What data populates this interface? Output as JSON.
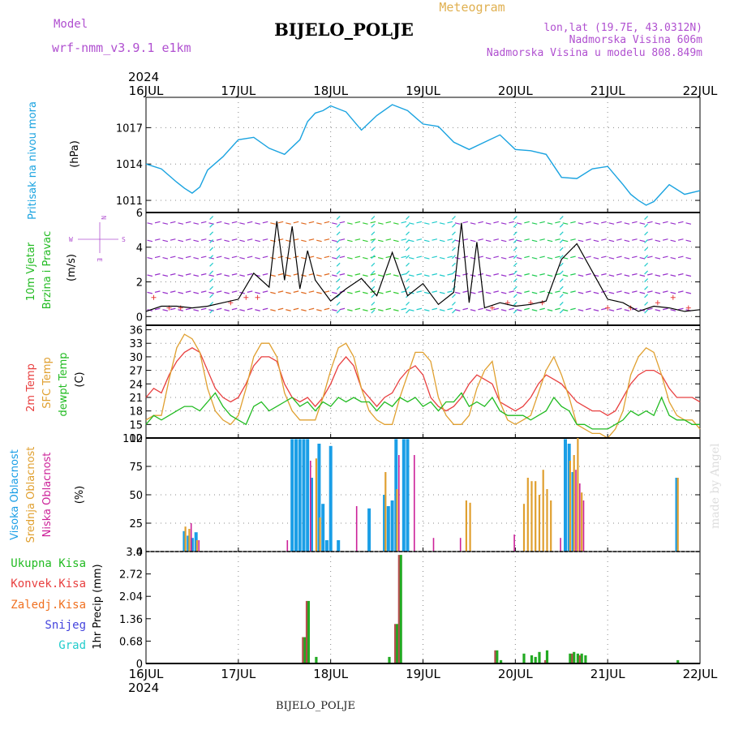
{
  "header": {
    "model_label": "Model",
    "model_name": "wrf-nmm_v3.9.1 e1km",
    "title": "BIJELO_POLJE",
    "meteogram_label": "Meteogram",
    "lonlat": "lon,lat (19.7E, 43.0312N)",
    "elevation": "Nadmorska Visina 606m",
    "model_elevation": "Nadmorska Visina u modelu 808.849m",
    "year_top": "2024",
    "year_bottom": "2024",
    "footer_station": "BIJELO_POLJE",
    "watermark": "made by Angel"
  },
  "colors": {
    "pressure": "#1aa3e0",
    "wind_label": "#22bb22",
    "wind_purple": "#9933cc",
    "wind_cyan": "#22cccc",
    "temp2m": "#e84040",
    "sfc": "#e0a030",
    "dewpt": "#22bb22",
    "cloud_high": "#1a9ee6",
    "cloud_mid": "#e0a030",
    "cloud_low": "#cc2299",
    "precip_total": "#22aa22",
    "precip_conv": "#e84040",
    "precip_strat": "#f07020",
    "snow": "#4444dd",
    "hail": "#22cccc"
  },
  "x_ticks": [
    "16JUL",
    "17JUL",
    "18JUL",
    "19JUL",
    "20JUL",
    "21JUL",
    "22JUL"
  ],
  "panels": {
    "pressure": {
      "label": "Pritisak na nivou mora",
      "unit": "(hPa)",
      "ticks": [
        "1011",
        "1014",
        "1017"
      ]
    },
    "wind": {
      "label1": "10m Vjetar",
      "label2": "Brzina i Pravac",
      "unit": "(m/s)",
      "compass": [
        "N",
        "W",
        "E",
        "S"
      ],
      "ticks": [
        "0",
        "2",
        "4",
        "6"
      ]
    },
    "temp": {
      "label1": "2m Temp",
      "label2": "SFC Temp",
      "label3": "dewpt Temp",
      "unit": "(C)",
      "ticks": [
        "12",
        "15",
        "18",
        "21",
        "24",
        "27",
        "30",
        "33",
        "36"
      ]
    },
    "cloud": {
      "label1": "Visoka Oblacnost",
      "label2": "Srednja Oblacnost",
      "label3": "Niska Oblacnost",
      "unit": "(%)",
      "ticks": [
        "0",
        "25",
        "50",
        "75",
        "100"
      ]
    },
    "precip": {
      "labels": [
        "Ukupna Kisa",
        "Konvek.Kisa",
        "Zaledj.Kisa",
        "Snijeg",
        "Grad"
      ],
      "unit": "1hr Precip (mm)",
      "ticks": [
        "0",
        "0.68",
        "1.36",
        "2.04",
        "2.72",
        "3.4"
      ]
    }
  },
  "chart_data": [
    {
      "type": "line",
      "name": "pressure",
      "ylabel": "Pritisak na nivou mora (hPa)",
      "ylim": [
        1010,
        1019.5
      ],
      "x": [
        0,
        4,
        8,
        10,
        12,
        14,
        16,
        20,
        24,
        28,
        32,
        36,
        40,
        42,
        44,
        46,
        48,
        52,
        56,
        60,
        64,
        68,
        72,
        76,
        80,
        84,
        88,
        92,
        96,
        100,
        104,
        108,
        112,
        116,
        120,
        124,
        126,
        128,
        130,
        132,
        136,
        140,
        144
      ],
      "values": [
        1014.0,
        1013.6,
        1012.5,
        1012.0,
        1011.6,
        1012.1,
        1013.5,
        1014.6,
        1016.0,
        1016.2,
        1015.3,
        1014.8,
        1016.0,
        1017.5,
        1018.2,
        1018.4,
        1018.8,
        1018.3,
        1016.8,
        1018.0,
        1018.9,
        1018.4,
        1017.3,
        1017.1,
        1015.8,
        1015.2,
        1015.8,
        1016.4,
        1015.2,
        1015.1,
        1014.8,
        1012.9,
        1012.8,
        1013.6,
        1013.8,
        1012.3,
        1011.5,
        1011.0,
        1010.6,
        1010.9,
        1012.3,
        1011.5,
        1011.8
      ]
    },
    {
      "type": "line",
      "name": "wind",
      "ylabel": "10m Vjetar Brzina i Pravac (m/s)",
      "ylim": [
        -0.5,
        6
      ],
      "x": [
        0,
        4,
        8,
        12,
        16,
        20,
        24,
        28,
        32,
        34,
        36,
        38,
        40,
        42,
        44,
        48,
        52,
        56,
        60,
        64,
        68,
        72,
        76,
        80,
        82,
        84,
        86,
        88,
        92,
        96,
        100,
        104,
        108,
        112,
        116,
        120,
        124,
        128,
        132,
        136,
        140,
        144
      ],
      "values": [
        0.3,
        0.6,
        0.6,
        0.5,
        0.6,
        0.8,
        1.0,
        2.5,
        1.7,
        5.5,
        2.1,
        5.2,
        1.6,
        3.8,
        2.1,
        0.9,
        1.6,
        2.2,
        1.2,
        3.7,
        1.2,
        1.9,
        0.7,
        1.4,
        5.4,
        0.8,
        4.3,
        0.5,
        0.8,
        0.6,
        0.7,
        0.9,
        3.3,
        4.2,
        2.6,
        1.0,
        0.8,
        0.3,
        0.6,
        0.5,
        0.3,
        0.4
      ]
    },
    {
      "type": "line",
      "ylabel": "(C)",
      "ylim": [
        12,
        37
      ],
      "x": [
        0,
        2,
        4,
        6,
        8,
        10,
        12,
        14,
        16,
        18,
        20,
        22,
        24,
        26,
        28,
        30,
        32,
        34,
        36,
        38,
        40,
        42,
        44,
        46,
        48,
        50,
        52,
        54,
        56,
        58,
        60,
        62,
        64,
        66,
        68,
        70,
        72,
        74,
        76,
        78,
        80,
        82,
        84,
        86,
        88,
        90,
        92,
        94,
        96,
        98,
        100,
        102,
        104,
        106,
        108,
        110,
        112,
        114,
        116,
        118,
        120,
        122,
        124,
        126,
        128,
        130,
        132,
        134,
        136,
        138,
        140,
        142,
        144
      ],
      "series": [
        {
          "name": "2m Temp",
          "values": [
            21,
            23,
            22,
            26,
            29,
            31,
            32,
            31,
            27,
            23,
            21,
            20,
            21,
            24,
            28,
            30,
            30,
            29,
            24,
            21,
            20,
            21,
            19,
            21,
            24,
            28,
            30,
            28,
            23,
            21,
            19,
            21,
            22,
            25,
            27,
            28,
            26,
            21,
            19,
            18,
            19,
            21,
            24,
            26,
            25,
            24,
            20,
            19,
            18,
            19,
            21,
            24,
            26,
            25,
            24,
            22,
            20,
            19,
            18,
            18,
            17,
            18,
            21,
            24,
            26,
            27,
            27,
            26,
            23,
            21,
            21,
            21,
            20
          ]
        },
        {
          "name": "SFC Temp",
          "values": [
            16,
            17,
            17,
            25,
            32,
            35,
            34,
            31,
            23,
            18,
            16,
            15,
            17,
            23,
            30,
            33,
            33,
            30,
            22,
            18,
            16,
            16,
            16,
            21,
            27,
            32,
            33,
            30,
            23,
            18,
            16,
            15,
            15,
            21,
            26,
            31,
            31,
            29,
            21,
            17,
            15,
            15,
            17,
            23,
            27,
            29,
            20,
            16,
            15,
            16,
            17,
            22,
            27,
            30,
            26,
            21,
            15,
            14,
            13,
            13,
            12,
            14,
            18,
            26,
            30,
            32,
            31,
            26,
            20,
            17,
            16,
            16,
            14
          ]
        },
        {
          "name": "dewpt Temp",
          "values": [
            15,
            17,
            16,
            17,
            18,
            19,
            19,
            18,
            20,
            22,
            19,
            17,
            16,
            15,
            19,
            20,
            18,
            19,
            20,
            21,
            19,
            20,
            18,
            20,
            19,
            21,
            20,
            21,
            20,
            20,
            18,
            20,
            19,
            21,
            20,
            21,
            19,
            20,
            18,
            20,
            20,
            22,
            19,
            20,
            19,
            21,
            18,
            17,
            17,
            17,
            16,
            17,
            18,
            21,
            19,
            18,
            15,
            15,
            14,
            14,
            14,
            15,
            16,
            18,
            17,
            18,
            17,
            21,
            17,
            16,
            16,
            15,
            15
          ]
        }
      ]
    },
    {
      "type": "bar",
      "ylabel": "(%)",
      "ylim": [
        0,
        100
      ],
      "series": [
        {
          "name": "Visoka Oblacnost",
          "x": [
            10,
            11,
            12,
            13,
            38,
            39,
            40,
            41,
            42,
            43,
            45,
            46,
            47,
            48,
            50,
            58,
            62,
            63,
            64,
            65,
            67,
            68,
            109,
            110,
            111,
            138
          ],
          "values": [
            18,
            14,
            12,
            17,
            99,
            99,
            99,
            99,
            99,
            65,
            95,
            42,
            10,
            93,
            10,
            38,
            50,
            40,
            45,
            99,
            99,
            99,
            99,
            95,
            70,
            65
          ]
        },
        {
          "name": "Srednja Oblacnost",
          "x": [
            10,
            11,
            13,
            44,
            45,
            62,
            65,
            83,
            84,
            98,
            99,
            100,
            101,
            102,
            103,
            104,
            105,
            110,
            111,
            112,
            113,
            138
          ],
          "values": [
            22,
            20,
            10,
            82,
            30,
            70,
            55,
            45,
            43,
            42,
            65,
            62,
            62,
            50,
            72,
            55,
            45,
            80,
            85,
            100,
            52,
            65
          ]
        },
        {
          "name": "Niska Oblacnost",
          "x": [
            12,
            14,
            37,
            43,
            55,
            66,
            70,
            75,
            82,
            96,
            108,
            112,
            113,
            114
          ],
          "values": [
            25,
            10,
            10,
            80,
            40,
            85,
            85,
            12,
            12,
            15,
            12,
            72,
            60,
            45
          ]
        }
      ]
    },
    {
      "type": "bar",
      "ylabel": "1hr Precip (mm)",
      "ylim": [
        0,
        3.4
      ],
      "series": [
        {
          "name": "Ukupna Kisa",
          "x": [
            41,
            42,
            44,
            63,
            65,
            66,
            91,
            92,
            98,
            100,
            101,
            102,
            104,
            110,
            111,
            112,
            113,
            114,
            138
          ],
          "values": [
            0.8,
            1.9,
            0.2,
            0.2,
            1.2,
            3.3,
            0.4,
            0.1,
            0.3,
            0.25,
            0.2,
            0.35,
            0.4,
            0.3,
            0.35,
            0.3,
            0.3,
            0.25,
            0.1
          ]
        },
        {
          "name": "Konvek.Kisa",
          "x": [
            41,
            42,
            65,
            66,
            91,
            104,
            111,
            113
          ],
          "values": [
            0.8,
            1.9,
            1.2,
            3.3,
            0.4,
            0.1,
            0.3,
            0.25
          ]
        }
      ]
    }
  ]
}
